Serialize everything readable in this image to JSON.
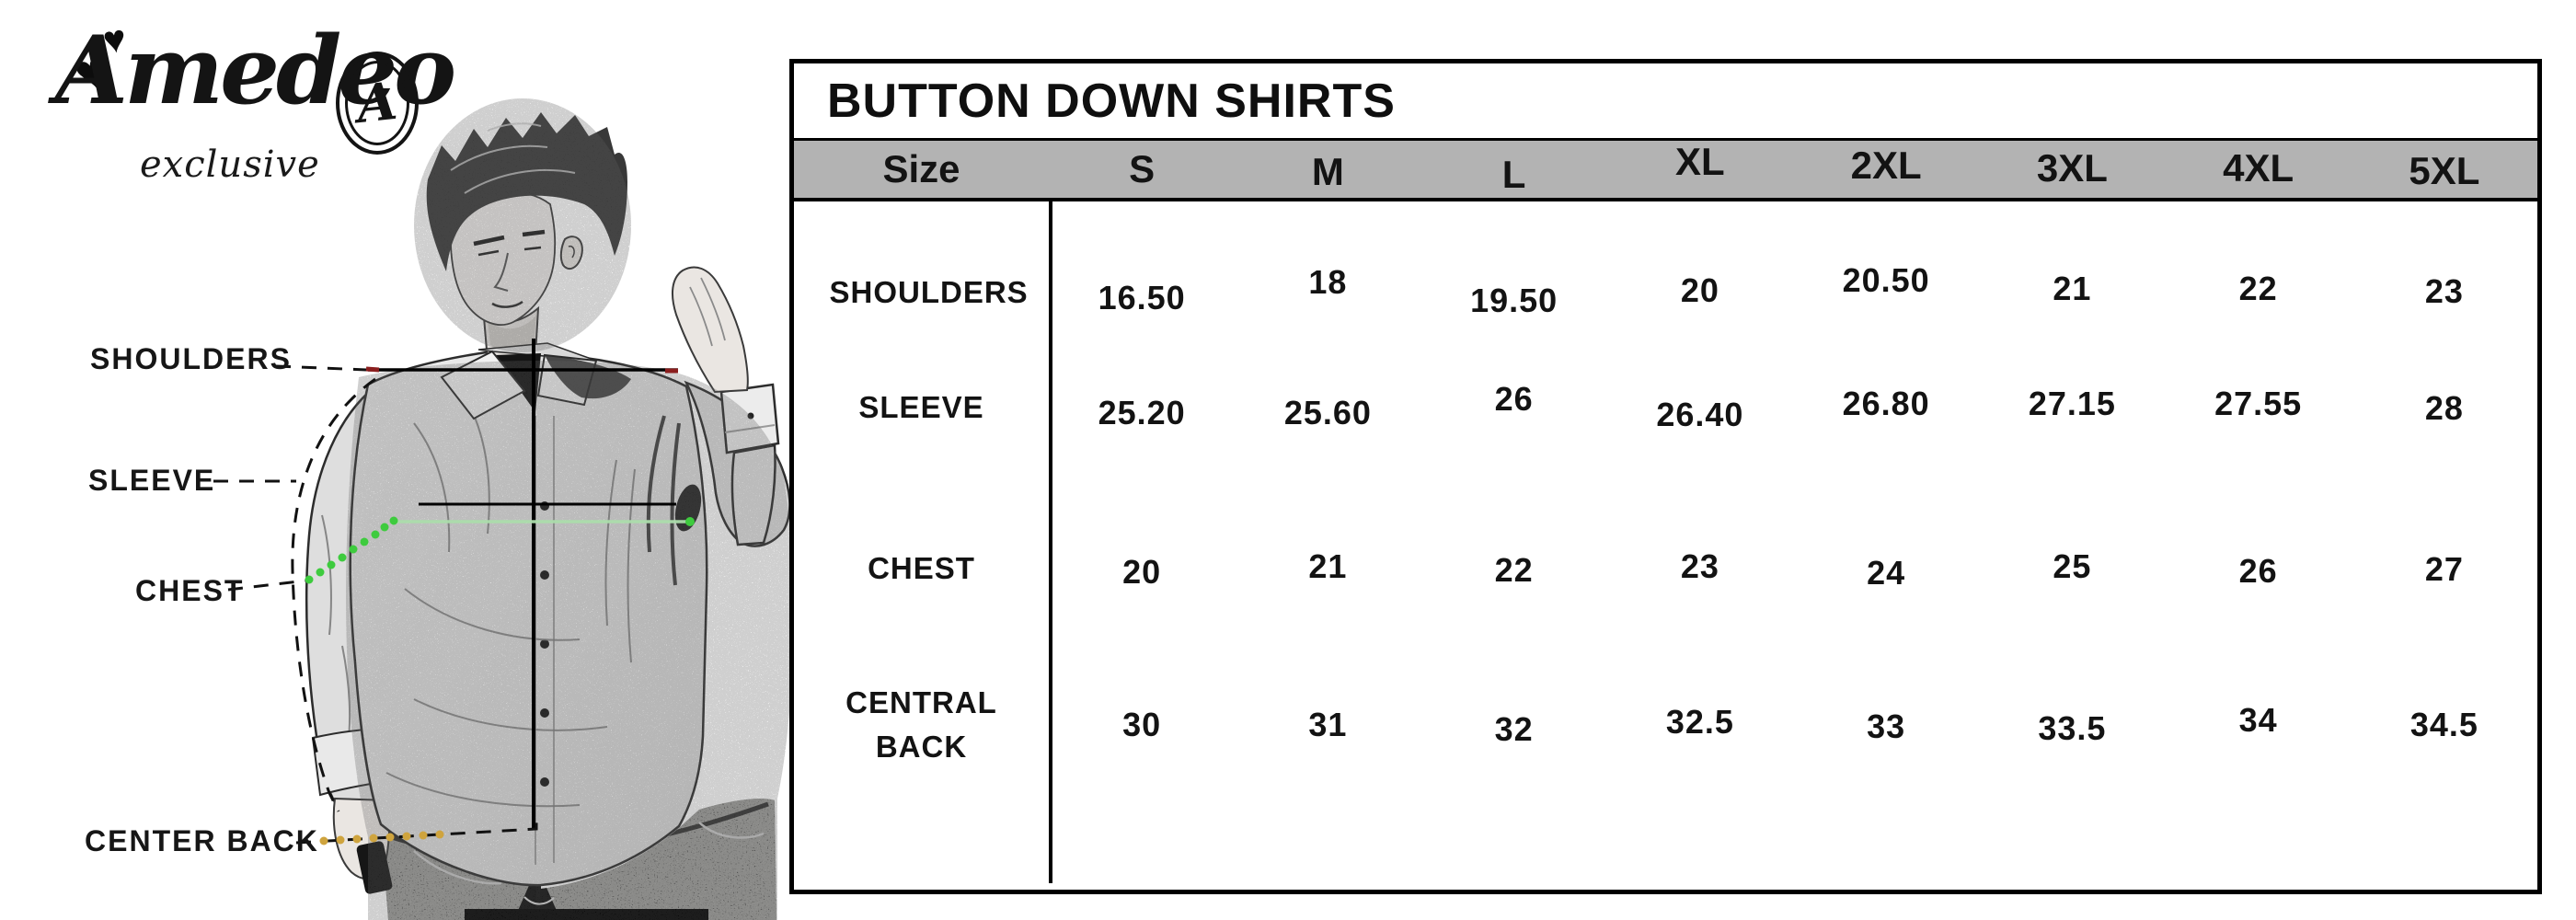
{
  "logo": {
    "brand": "Amedeo",
    "subtitle": "exclusive",
    "monogram_letter": "A"
  },
  "measurement_labels": {
    "shoulders": "SHOULDERS",
    "sleeve": "SLEEVE",
    "chest": "CHEST",
    "center_back": "CENTER BACK"
  },
  "size_chart": {
    "title": "BUTTON DOWN SHIRTS",
    "header": {
      "size_label": "Size",
      "sizes": [
        "S",
        "M",
        "L",
        "XL",
        "2XL",
        "3XL",
        "4XL",
        "5XL"
      ]
    },
    "rows": [
      {
        "label": "SHOULDERS",
        "values": [
          "16.50",
          "18",
          "19.50",
          "20",
          "20.50",
          "21",
          "22",
          "23"
        ]
      },
      {
        "label": "SLEEVE",
        "values": [
          "25.20",
          "25.60",
          "26",
          "26.40",
          "26.80",
          "27.15",
          "27.55",
          "28"
        ]
      },
      {
        "label": "CHEST",
        "values": [
          "20",
          "21",
          "22",
          "23",
          "24",
          "25",
          "26",
          "27"
        ]
      },
      {
        "label": "CENTRAL BACK",
        "values": [
          "30",
          "31",
          "32",
          "32.5",
          "33",
          "33.5",
          "34",
          "34.5"
        ]
      }
    ]
  },
  "colors": {
    "header_bg": "#b3b3b3",
    "table_border": "#000000",
    "accent_green": "#3ecb3e",
    "accent_green_light": "#abdcab",
    "accent_yellow": "#cfa43e",
    "accent_red": "#8b1e1e"
  }
}
